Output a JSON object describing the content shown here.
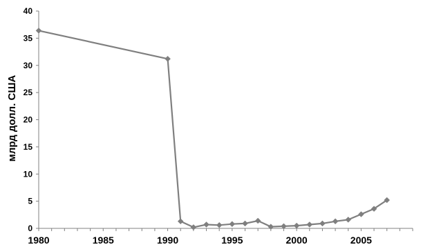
{
  "chart_data": {
    "type": "line",
    "title": "",
    "xlabel": "",
    "ylabel": "млрд долл. США",
    "xlim": [
      1980,
      2009
    ],
    "ylim": [
      0,
      40
    ],
    "x_ticks": [
      1980,
      1985,
      1990,
      1995,
      2000,
      2005
    ],
    "y_ticks": [
      0,
      5,
      10,
      15,
      20,
      25,
      30,
      35,
      40
    ],
    "grid": false,
    "legend": "none",
    "series": [
      {
        "color": "#7f7f7f",
        "marker": "diamond",
        "x": [
          1980,
          1990,
          1991,
          1992,
          1993,
          1994,
          1995,
          1996,
          1997,
          1998,
          1999,
          2000,
          2001,
          2002,
          2003,
          2004,
          2005,
          2006,
          2007
        ],
        "y": [
          36.4,
          31.2,
          1.3,
          0.2,
          0.7,
          0.6,
          0.8,
          0.9,
          1.4,
          0.3,
          0.4,
          0.5,
          0.7,
          0.9,
          1.3,
          1.6,
          2.6,
          3.6,
          5.2
        ]
      }
    ]
  }
}
